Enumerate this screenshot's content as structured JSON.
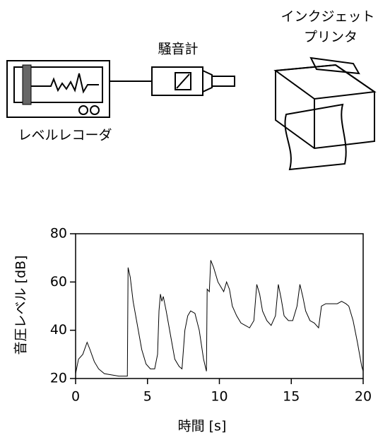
{
  "diagram": {
    "meter_label": "騒音計",
    "printer_label": [
      "インクジェット",
      "プリンタ"
    ],
    "recorder_label": "レベルレコーダ"
  },
  "chart_data": {
    "type": "line",
    "color": "#000000",
    "x_label": "時間 [s]",
    "y_label": "音圧レベル [dB]",
    "x": [
      0,
      0.2,
      0.5,
      0.8,
      1.0,
      1.3,
      1.6,
      2,
      2.5,
      3,
      3.5,
      3.6,
      3.65,
      3.8,
      4.0,
      4.3,
      4.6,
      4.9,
      5.2,
      5.5,
      5.7,
      5.8,
      5.9,
      6.0,
      6.1,
      6.3,
      6.6,
      6.9,
      7.2,
      7.4,
      7.6,
      7.8,
      8.0,
      8.3,
      8.6,
      8.9,
      9.1,
      9.15,
      9.3,
      9.4,
      9.6,
      9.9,
      10.1,
      10.3,
      10.5,
      10.7,
      10.9,
      11.2,
      11.5,
      11.8,
      12.1,
      12.4,
      12.6,
      12.8,
      13.0,
      13.3,
      13.6,
      13.9,
      14.1,
      14.3,
      14.5,
      14.8,
      15.1,
      15.4,
      15.6,
      15.8,
      16.0,
      16.3,
      16.6,
      16.9,
      17.1,
      17.4,
      17.8,
      18.2,
      18.5,
      18.8,
      19.0,
      19.3,
      19.6,
      19.9,
      20
    ],
    "values": [
      22,
      28,
      30,
      35,
      32,
      27,
      24,
      22,
      21.5,
      21,
      21,
      21,
      66,
      62,
      52,
      42,
      32,
      26,
      24,
      24,
      30,
      48,
      55,
      52,
      54,
      48,
      38,
      28,
      25,
      24,
      40,
      46,
      48,
      47,
      40,
      28,
      23,
      57,
      56,
      69,
      66,
      60,
      58,
      56,
      60,
      57,
      50,
      46,
      43,
      42,
      41,
      44,
      59,
      55,
      48,
      44,
      42,
      46,
      59,
      53,
      46,
      44,
      44,
      50,
      59,
      54,
      48,
      44,
      43,
      41,
      50,
      51,
      51,
      51,
      52,
      51,
      50,
      44,
      35,
      25,
      23
    ],
    "xlim": [
      0,
      20
    ],
    "xticks": [
      0,
      5,
      10,
      15,
      20
    ],
    "ylim": [
      20,
      80
    ],
    "yticks": [
      20,
      40,
      60,
      80
    ]
  }
}
